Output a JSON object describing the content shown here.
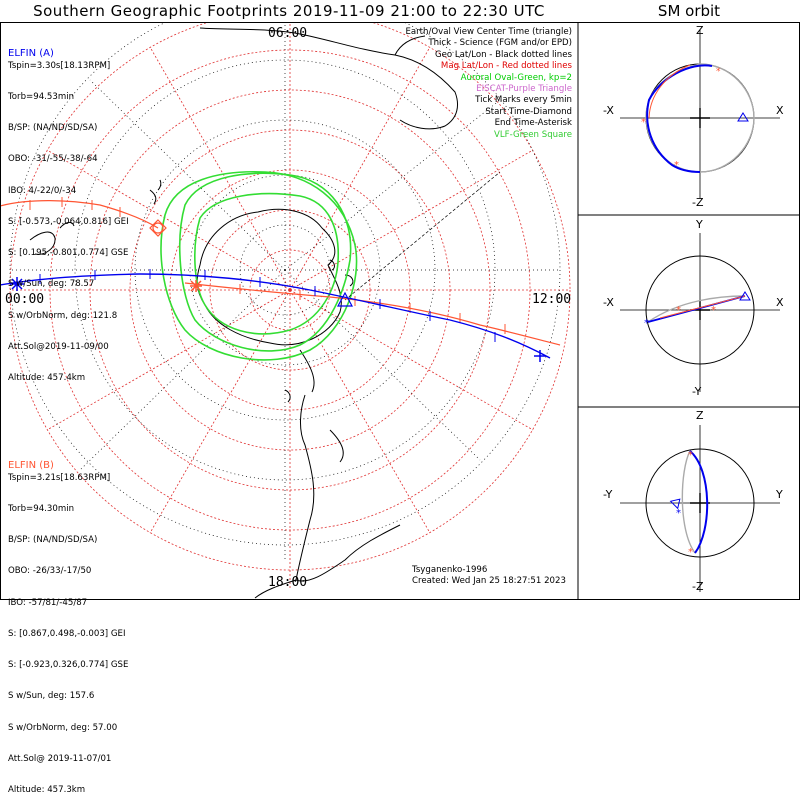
{
  "title": "Southern Geographic Footprints 2019-11-09 21:00 to 22:30 UTC",
  "sm_title": "SM orbit",
  "time_labels": {
    "top": "06:00",
    "left": "00:00",
    "right": "12:00",
    "bottom": "18:00"
  },
  "legend": [
    {
      "text": "Earth/Oval View Center Time (triangle)",
      "color": "#000000"
    },
    {
      "text": "Thick - Science (FGM and/or EPD)",
      "color": "#000000"
    },
    {
      "text": "Geo Lat/Lon - Black dotted lines",
      "color": "#000000"
    },
    {
      "text": "Mag Lat/Lon - Red dotted lines",
      "color": "#e00000"
    },
    {
      "text": "Auroral Oval-Green, kp=2",
      "color": "#00cc00"
    },
    {
      "text": "EISCAT-Purple Triangle",
      "color": "#cc66cc"
    },
    {
      "text": "Tick Marks every 5min",
      "color": "#000000"
    },
    {
      "text": "Start Time-Diamond",
      "color": "#000000"
    },
    {
      "text": "End Time-Asterisk",
      "color": "#000000"
    },
    {
      "text": "VLF-Green Square",
      "color": "#33cc33"
    }
  ],
  "elfin_a": {
    "name": "ELFIN (A)",
    "color": "#0000ee",
    "lines": [
      "Tspin=3.30s[18.13RPM]",
      "Torb=94.53min",
      "B/SP: (NA/ND/SD/SA)",
      "OBO: -31/-55/-38/-64",
      "IBO: 4/-22/0/-34",
      "S: [-0.573,-0.064,0.816] GEI",
      "S: [0.195,-0.801,0.774] GSE",
      "S w/Sun, deg: 78.57",
      "S w/OrbNorm, deg: 121.8",
      "Att.Sol@2019-11-09/00",
      "Altitude: 457.4km"
    ]
  },
  "elfin_b": {
    "name": "ELFIN (B)",
    "color": "#ff5533",
    "lines": [
      "Tspin=3.21s[18.63RPM]",
      "Torb=94.30min",
      "B/SP: (NA/ND/SD/SA)",
      "OBO: -26/33/-17/50",
      "IBO: -57/81/-45/87",
      "S: [0.867,0.498,-0.003] GEI",
      "S: [-0.923,0.326,0.774] GSE",
      "S w/Sun, deg: 157.6",
      "S w/OrbNorm, deg: 57.00",
      "Att.Sol@ 2019-11-07/01",
      "Altitude: 457.3km"
    ]
  },
  "credits": [
    "Tsyganenko-1996",
    "Created: Wed Jan 25 18:27:51 2023"
  ],
  "sm_panels": [
    {
      "top": "Z",
      "bottom": "-Z",
      "left": "-X",
      "right": "X"
    },
    {
      "top": "Y",
      "bottom": "-Y",
      "left": "-X",
      "right": "X"
    },
    {
      "top": "Z",
      "bottom": "-Z",
      "left": "-Y",
      "right": "Y"
    }
  ],
  "colors": {
    "track_a": "#0000ee",
    "track_b": "#ff5533",
    "mag_grid": "#e03030",
    "oval": "#33dd33",
    "geo_grid": "#000000"
  }
}
